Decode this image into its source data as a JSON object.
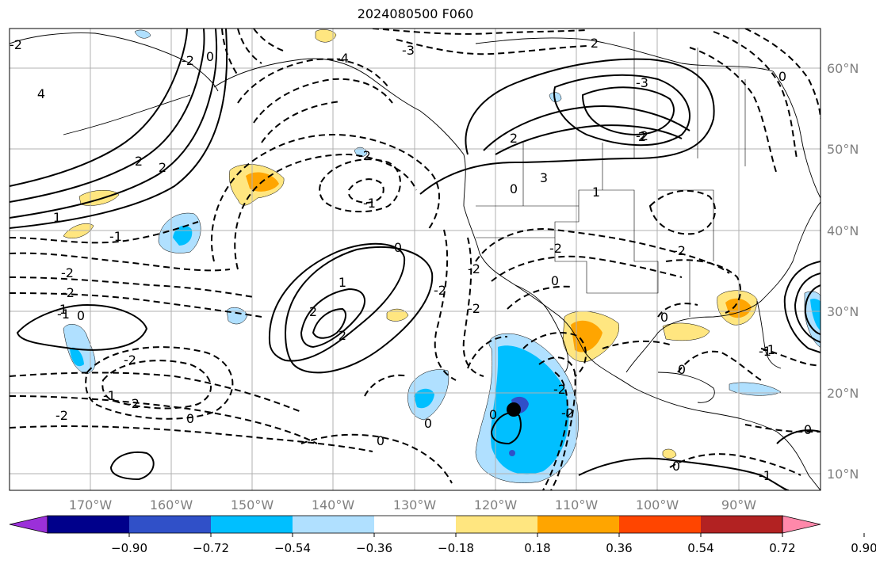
{
  "title": "2024080500 F060",
  "map": {
    "lon_labels": [
      "170°W",
      "160°W",
      "150°W",
      "140°W",
      "130°W",
      "120°W",
      "110°W",
      "100°W",
      "90°W"
    ],
    "lat_labels": [
      "60°N",
      "50°N",
      "40°N",
      "30°N",
      "20°N",
      "10°N"
    ],
    "label_color": "#808080",
    "contour_labels": [
      "2",
      "-2",
      "-3",
      "-2",
      "0",
      "-4",
      "4",
      "2",
      "2",
      "1",
      "-1",
      "-2",
      "-2",
      "0",
      "1",
      "-1",
      "-2",
      "-1",
      "-2",
      "0",
      "-2",
      "-2",
      "-1",
      "2",
      "1",
      "0",
      "2",
      "-2",
      "-2",
      "-2",
      "0",
      "-2",
      "-2",
      "0",
      "0",
      "-2",
      "0",
      "2",
      "-2",
      "-3",
      "2",
      "3",
      "0",
      "1",
      "-1",
      "-2",
      "0",
      "-1",
      "0",
      "0",
      "0",
      "-1",
      "0"
    ],
    "storm_marker": "storm-center"
  },
  "colorbar": {
    "tick_labels": [
      "−0.90",
      "−0.72",
      "−0.54",
      "−0.36",
      "−0.18",
      "0.18",
      "0.36",
      "0.54",
      "0.72",
      "0.90"
    ],
    "colors": [
      "#9b30d9",
      "#00008b",
      "#3050c8",
      "#00bfff",
      "#b0e0ff",
      "#ffffff",
      "#ffe680",
      "#ffa500",
      "#ff4500",
      "#b22222",
      "#ff88aa"
    ]
  }
}
